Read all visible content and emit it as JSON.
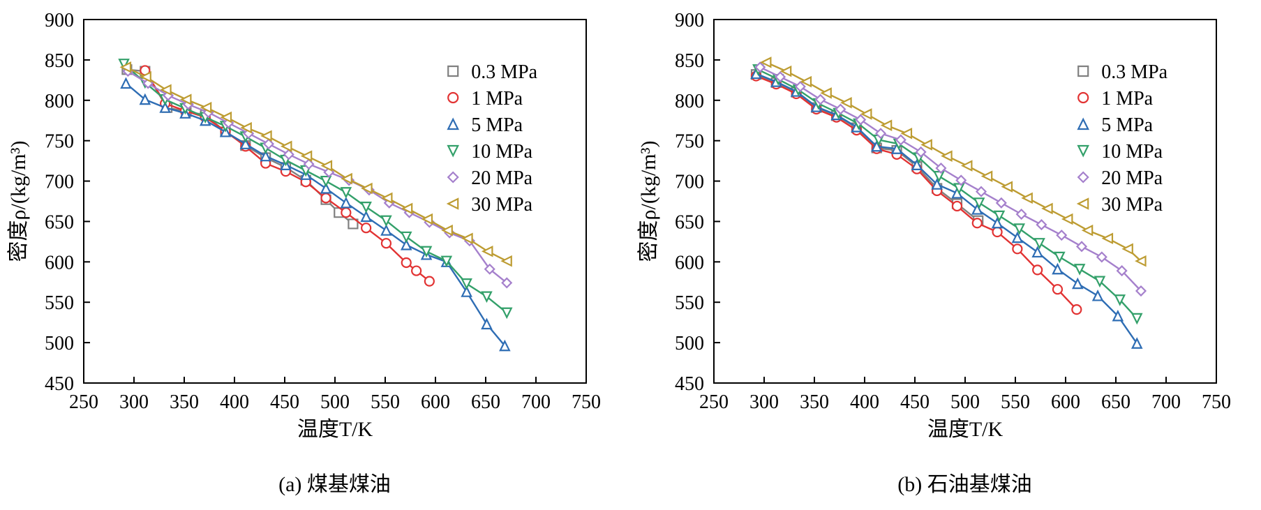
{
  "page": {
    "background": "#ffffff"
  },
  "chart_data": [
    {
      "type": "scatter",
      "caption": "(a) 煤基煤油",
      "xlabel": "温度T/K",
      "ylabel": "密度ρ/(kg/m³)",
      "xlim": [
        250,
        750
      ],
      "ylim": [
        450,
        900
      ],
      "xticks": [
        250,
        300,
        350,
        400,
        450,
        500,
        550,
        600,
        650,
        700,
        750
      ],
      "yticks": [
        450,
        500,
        550,
        600,
        650,
        700,
        750,
        800,
        850,
        900
      ],
      "grid": false,
      "legend_position": "upper-right-inside",
      "series": [
        {
          "name": "0.3 MPa",
          "marker": "square",
          "color": "#808080",
          "points": [
            [
              293,
              838
            ],
            [
              311,
              836
            ],
            [
              333,
              791
            ],
            [
              352,
              786
            ],
            [
              371,
              782
            ],
            [
              391,
              761
            ],
            [
              411,
              744
            ],
            [
              431,
              729
            ],
            [
              451,
              717
            ],
            [
              471,
              701
            ],
            [
              491,
              677
            ],
            [
              504,
              661
            ],
            [
              518,
              647
            ]
          ]
        },
        {
          "name": "1 MPa",
          "marker": "circle",
          "color": "#e23333",
          "points": [
            [
              311,
              837
            ],
            [
              331,
              796
            ],
            [
              351,
              787
            ],
            [
              371,
              779
            ],
            [
              391,
              762
            ],
            [
              411,
              743
            ],
            [
              431,
              722
            ],
            [
              451,
              712
            ],
            [
              471,
              699
            ],
            [
              491,
              679
            ],
            [
              511,
              661
            ],
            [
              531,
              642
            ],
            [
              551,
              623
            ],
            [
              571,
              599
            ],
            [
              581,
              589
            ],
            [
              594,
              576
            ]
          ]
        },
        {
          "name": "5 MPa",
          "marker": "triangle-up",
          "color": "#2e6db4",
          "points": [
            [
              292,
              821
            ],
            [
              311,
              801
            ],
            [
              331,
              791
            ],
            [
              351,
              784
            ],
            [
              371,
              775
            ],
            [
              391,
              761
            ],
            [
              411,
              746
            ],
            [
              431,
              731
            ],
            [
              451,
              720
            ],
            [
              471,
              708
            ],
            [
              491,
              691
            ],
            [
              511,
              673
            ],
            [
              531,
              656
            ],
            [
              551,
              639
            ],
            [
              571,
              621
            ],
            [
              591,
              609
            ],
            [
              611,
              600
            ],
            [
              631,
              563
            ],
            [
              651,
              523
            ],
            [
              669,
              496
            ]
          ]
        },
        {
          "name": "10 MPa",
          "marker": "triangle-down",
          "color": "#33a06a",
          "points": [
            [
              290,
              845
            ],
            [
              311,
              822
            ],
            [
              331,
              801
            ],
            [
              351,
              790
            ],
            [
              371,
              779
            ],
            [
              391,
              768
            ],
            [
              411,
              755
            ],
            [
              431,
              741
            ],
            [
              451,
              726
            ],
            [
              471,
              713
            ],
            [
              491,
              700
            ],
            [
              511,
              686
            ],
            [
              531,
              668
            ],
            [
              551,
              651
            ],
            [
              571,
              631
            ],
            [
              591,
              613
            ],
            [
              611,
              601
            ],
            [
              631,
              573
            ],
            [
              651,
              557
            ],
            [
              671,
              537
            ]
          ]
        },
        {
          "name": "20 MPa",
          "marker": "diamond",
          "color": "#a580cc",
          "points": [
            [
              294,
              836
            ],
            [
              314,
              821
            ],
            [
              334,
              806
            ],
            [
              354,
              795
            ],
            [
              374,
              785
            ],
            [
              394,
              772
            ],
            [
              414,
              759
            ],
            [
              434,
              746
            ],
            [
              454,
              733
            ],
            [
              474,
              721
            ],
            [
              494,
              711
            ],
            [
              514,
              701
            ],
            [
              534,
              689
            ],
            [
              554,
              673
            ],
            [
              574,
              661
            ],
            [
              594,
              649
            ],
            [
              614,
              636
            ],
            [
              634,
              626
            ],
            [
              654,
              591
            ],
            [
              671,
              574
            ]
          ]
        },
        {
          "name": "30 MPa",
          "marker": "triangle-left",
          "color": "#bd9c32",
          "points": [
            [
              292,
              841
            ],
            [
              312,
              829
            ],
            [
              332,
              813
            ],
            [
              352,
              801
            ],
            [
              372,
              791
            ],
            [
              392,
              779
            ],
            [
              412,
              766
            ],
            [
              432,
              756
            ],
            [
              452,
              743
            ],
            [
              472,
              731
            ],
            [
              492,
              719
            ],
            [
              512,
              703
            ],
            [
              532,
              691
            ],
            [
              552,
              679
            ],
            [
              572,
              666
            ],
            [
              592,
              653
            ],
            [
              612,
              639
            ],
            [
              632,
              629
            ],
            [
              652,
              613
            ],
            [
              671,
              601
            ]
          ]
        }
      ]
    },
    {
      "type": "scatter",
      "caption": "(b) 石油基煤油",
      "xlabel": "温度T/K",
      "ylabel": "密度ρ/(kg/m³)",
      "xlim": [
        250,
        750
      ],
      "ylim": [
        450,
        900
      ],
      "xticks": [
        250,
        300,
        350,
        400,
        450,
        500,
        550,
        600,
        650,
        700,
        750
      ],
      "yticks": [
        450,
        500,
        550,
        600,
        650,
        700,
        750,
        800,
        850,
        900
      ],
      "grid": false,
      "legend_position": "upper-right-inside",
      "series": [
        {
          "name": "0.3 MPa",
          "marker": "square",
          "color": "#808080",
          "points": [
            [
              292,
              832
            ],
            [
              312,
              822
            ],
            [
              332,
              810
            ],
            [
              352,
              791
            ],
            [
              372,
              781
            ],
            [
              392,
              766
            ],
            [
              412,
              741
            ],
            [
              432,
              738
            ],
            [
              452,
              718
            ],
            [
              472,
              691
            ],
            [
              492,
              672
            ],
            [
              513,
              651
            ]
          ]
        },
        {
          "name": "1 MPa",
          "marker": "circle",
          "color": "#e23333",
          "points": [
            [
              292,
              830
            ],
            [
              312,
              820
            ],
            [
              332,
              808
            ],
            [
              352,
              789
            ],
            [
              372,
              779
            ],
            [
              392,
              763
            ],
            [
              412,
              740
            ],
            [
              432,
              733
            ],
            [
              452,
              715
            ],
            [
              472,
              688
            ],
            [
              492,
              669
            ],
            [
              512,
              648
            ],
            [
              532,
              637
            ],
            [
              552,
              616
            ],
            [
              572,
              590
            ],
            [
              592,
              566
            ],
            [
              611,
              541
            ]
          ]
        },
        {
          "name": "5 MPa",
          "marker": "triangle-up",
          "color": "#2e6db4",
          "points": [
            [
              292,
              833
            ],
            [
              312,
              823
            ],
            [
              332,
              811
            ],
            [
              352,
              792
            ],
            [
              372,
              782
            ],
            [
              392,
              767
            ],
            [
              412,
              743
            ],
            [
              432,
              740
            ],
            [
              452,
              720
            ],
            [
              472,
              696
            ],
            [
              492,
              685
            ],
            [
              512,
              665
            ],
            [
              532,
              648
            ],
            [
              552,
              630
            ],
            [
              572,
              612
            ],
            [
              592,
              591
            ],
            [
              612,
              573
            ],
            [
              632,
              558
            ],
            [
              652,
              533
            ],
            [
              671,
              499
            ]
          ]
        },
        {
          "name": "10 MPa",
          "marker": "triangle-down",
          "color": "#33a06a",
          "points": [
            [
              294,
              838
            ],
            [
              314,
              826
            ],
            [
              334,
              813
            ],
            [
              354,
              796
            ],
            [
              374,
              784
            ],
            [
              394,
              771
            ],
            [
              414,
              751
            ],
            [
              434,
              746
            ],
            [
              454,
              729
            ],
            [
              474,
              706
            ],
            [
              494,
              691
            ],
            [
              514,
              673
            ],
            [
              534,
              657
            ],
            [
              554,
              641
            ],
            [
              574,
              623
            ],
            [
              594,
              606
            ],
            [
              614,
              591
            ],
            [
              634,
              576
            ],
            [
              654,
              553
            ],
            [
              671,
              530
            ]
          ]
        },
        {
          "name": "20 MPa",
          "marker": "diamond",
          "color": "#a580cc",
          "points": [
            [
              296,
              841
            ],
            [
              316,
              829
            ],
            [
              336,
              817
            ],
            [
              356,
              801
            ],
            [
              376,
              789
            ],
            [
              396,
              776
            ],
            [
              416,
              759
            ],
            [
              436,
              751
            ],
            [
              456,
              736
            ],
            [
              476,
              716
            ],
            [
              496,
              701
            ],
            [
              516,
              687
            ],
            [
              536,
              673
            ],
            [
              556,
              659
            ],
            [
              576,
              646
            ],
            [
              596,
              633
            ],
            [
              616,
              619
            ],
            [
              636,
              606
            ],
            [
              656,
              589
            ],
            [
              675,
              564
            ]
          ]
        },
        {
          "name": "30 MPa",
          "marker": "triangle-left",
          "color": "#bd9c32",
          "points": [
            [
              302,
              847
            ],
            [
              322,
              836
            ],
            [
              342,
              823
            ],
            [
              362,
              809
            ],
            [
              382,
              797
            ],
            [
              402,
              783
            ],
            [
              422,
              769
            ],
            [
              442,
              759
            ],
            [
              462,
              745
            ],
            [
              482,
              731
            ],
            [
              502,
              719
            ],
            [
              522,
              706
            ],
            [
              542,
              693
            ],
            [
              562,
              679
            ],
            [
              582,
              666
            ],
            [
              602,
              653
            ],
            [
              622,
              639
            ],
            [
              642,
              629
            ],
            [
              662,
              616
            ],
            [
              675,
              601
            ]
          ]
        }
      ]
    }
  ]
}
